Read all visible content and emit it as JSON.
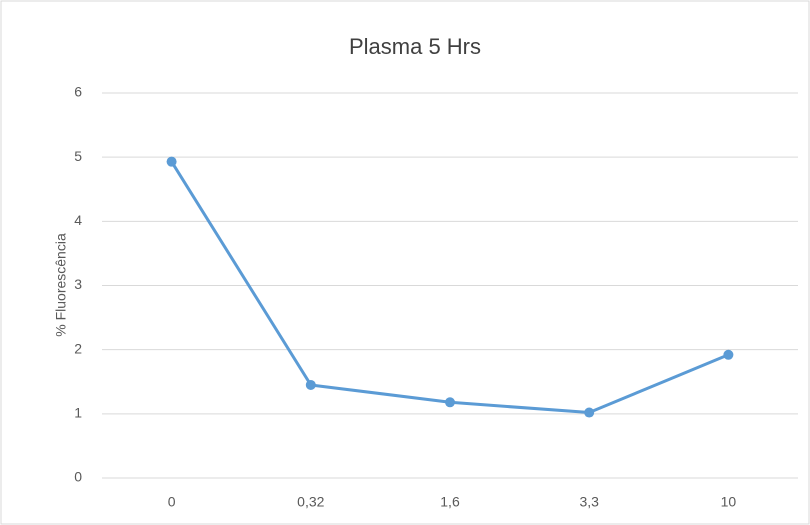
{
  "chart_data": {
    "type": "line",
    "title": "Plasma 5 Hrs",
    "y_label": "% Fluorescência",
    "categories": [
      "0",
      "0,32",
      "1,6",
      "3,3",
      "10"
    ],
    "series": [
      {
        "name": "Plasma 5 Hrs",
        "color": "#5b9bd5",
        "values": [
          4.93,
          1.45,
          1.18,
          1.02,
          1.92
        ]
      }
    ],
    "ylim": [
      0,
      6
    ],
    "yticks": [
      0,
      1,
      2,
      3,
      4,
      5,
      6
    ],
    "grid": true
  }
}
